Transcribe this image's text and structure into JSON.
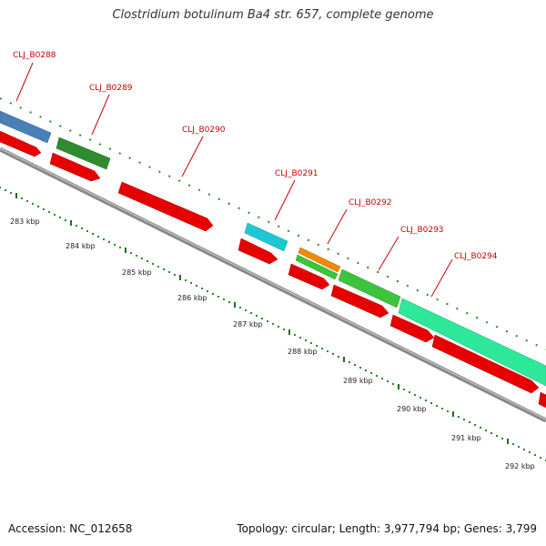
{
  "title": "Clostridium botulinum Ba4 str. 657, complete genome",
  "footer": {
    "accession": "Accession: NC_012658",
    "topology": "Topology: circular; Length: 3,977,794 bp; Genes: 3,799"
  },
  "genes": [
    {
      "label": "CLJ_B0288",
      "color": "#4a7fb8"
    },
    {
      "label": "CLJ_B0289",
      "color": "#2e8b2e"
    },
    {
      "label": "CLJ_B0290",
      "color": "#e00000"
    },
    {
      "label": "CLJ_B0291",
      "color": "#1ec8d2"
    },
    {
      "label": "CLJ_B0292",
      "color": "#f08a00"
    },
    {
      "label": "CLJ_B0293",
      "color": "#3cc43c"
    },
    {
      "label": "CLJ_B0294",
      "color": "#2ee89a"
    }
  ],
  "ticks": [
    "283 kbp",
    "284 kbp",
    "285 kbp",
    "286 kbp",
    "287 kbp",
    "288 kbp",
    "289 kbp",
    "290 kbp",
    "291 kbp",
    "292 kbp"
  ]
}
